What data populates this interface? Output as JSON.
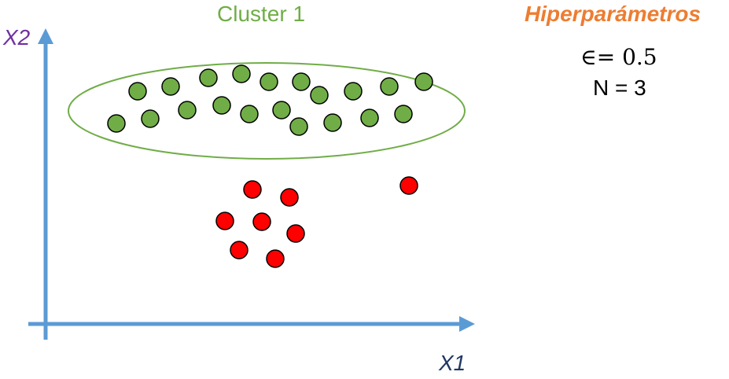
{
  "labels": {
    "cluster": "Cluster 1",
    "x_axis": "X1",
    "y_axis": "X2",
    "hyperparams_title": "Hiperparámetros",
    "epsilon": "∈= 0.5",
    "n": "N = 3"
  },
  "colors": {
    "axis": "#5B9BD5",
    "cluster_label": "#70AD47",
    "cluster_ellipse": "#70AD47",
    "green_point": "#70AD47",
    "red_point": "#FF0000",
    "point_outline": "#000000",
    "x_label": "#1F3864",
    "y_label": "#7030A0",
    "hyperparams_title": "#ED7D31"
  }
}
